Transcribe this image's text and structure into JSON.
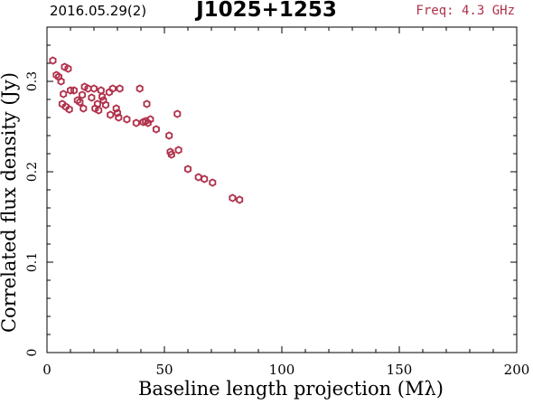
{
  "header": {
    "date_label": "2016.05.29(2)",
    "title": "J1025+1253",
    "freq_label": "Freq: 4.3 GHz"
  },
  "chart_data": {
    "type": "scatter",
    "title": "J1025+1253",
    "xlabel": "Baseline length projection (Mλ)",
    "ylabel": "Correlated flux density (Jy)",
    "xlim": [
      0,
      200
    ],
    "ylim": [
      0,
      0.36
    ],
    "x_ticks": [
      0,
      50,
      100,
      150,
      200
    ],
    "x_tick_labels": [
      "0",
      "50",
      "100",
      "150",
      "200"
    ],
    "y_ticks": [
      0,
      0.1,
      0.2,
      0.3
    ],
    "y_tick_labels": [
      "0",
      "0.1",
      "0.2",
      "0.3"
    ],
    "grid": false,
    "marker_color": "#b0304a",
    "series": [
      {
        "x": [
          2.5,
          4.0,
          5.0,
          6.0,
          7.0,
          7.5,
          9.0,
          6.5,
          8.0,
          9.5,
          10.0,
          11.5,
          13.0,
          14.0,
          15.0,
          15.5,
          16.0,
          17.5,
          19.0,
          20.0,
          20.5,
          21.5,
          22.0,
          23.0,
          23.5,
          24.0,
          25.0,
          26.5,
          27.0,
          28.0,
          29.5,
          30.0,
          30.5,
          31.0,
          34.0,
          38.0,
          39.5,
          41.0,
          42.0,
          42.5,
          43.0,
          44.0,
          46.5,
          52.0,
          52.5,
          53.0,
          55.5,
          56.0,
          60.0,
          64.5,
          67.0,
          70.5,
          79.0,
          82.0
        ],
        "y": [
          0.323,
          0.307,
          0.305,
          0.3,
          0.286,
          0.316,
          0.314,
          0.275,
          0.272,
          0.269,
          0.29,
          0.29,
          0.279,
          0.277,
          0.285,
          0.27,
          0.294,
          0.292,
          0.282,
          0.292,
          0.27,
          0.275,
          0.268,
          0.29,
          0.283,
          0.279,
          0.274,
          0.288,
          0.263,
          0.292,
          0.27,
          0.265,
          0.26,
          0.292,
          0.258,
          0.254,
          0.292,
          0.255,
          0.256,
          0.275,
          0.254,
          0.258,
          0.247,
          0.24,
          0.222,
          0.219,
          0.264,
          0.224,
          0.203,
          0.194,
          0.192,
          0.188,
          0.171,
          0.169
        ]
      }
    ]
  }
}
